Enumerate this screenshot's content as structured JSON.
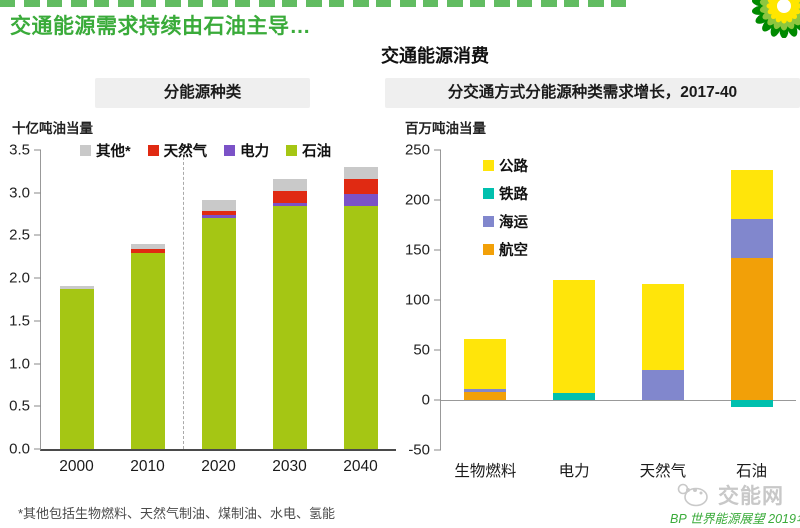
{
  "page": {
    "title": "交通能源需求持续由石油主导…",
    "subtitle": "交通能源消费",
    "footnote": "*其他包括生物燃料、天然气制油、煤制油、水电、氢能",
    "source": "BP 世界能源展望 2019年中文版",
    "watermark_label": "交能网",
    "logo": "bp-helios-logo"
  },
  "colors": {
    "title_green": "#3aab3a",
    "header_bg": "#efefef",
    "watermark_gray": "#c8c8c8",
    "axis_gray": "#999999"
  },
  "chart_data": [
    {
      "type": "bar",
      "title": "分能源种类",
      "unit_label": "十亿吨油当量",
      "categories": [
        "2000",
        "2010",
        "2020",
        "2030",
        "2040"
      ],
      "series": [
        {
          "name": "石油",
          "color": "#a5c614",
          "values": [
            1.87,
            2.29,
            2.71,
            2.84,
            2.84
          ]
        },
        {
          "name": "电力",
          "color": "#7b52c7",
          "values": [
            0,
            0,
            0.03,
            0.04,
            0.15
          ]
        },
        {
          "name": "天然气",
          "color": "#e02a12",
          "values": [
            0,
            0.05,
            0.05,
            0.14,
            0.17
          ]
        },
        {
          "name": "其他*",
          "color": "#c9c9c9",
          "values": [
            0.04,
            0.06,
            0.12,
            0.14,
            0.14
          ]
        }
      ],
      "legend_order": [
        "其他*",
        "天然气",
        "电力",
        "石油"
      ],
      "legend_position": "top-horizontal",
      "ylim": [
        0,
        3.5
      ],
      "yticks": [
        {
          "value": 0,
          "label": "0.0"
        },
        {
          "value": 0.5,
          "label": "0.5"
        },
        {
          "value": 1,
          "label": "1.0"
        },
        {
          "value": 1.5,
          "label": "1.5"
        },
        {
          "value": 2,
          "label": "2.0"
        },
        {
          "value": 2.5,
          "label": "2.5"
        },
        {
          "value": 3,
          "label": "3.0"
        },
        {
          "value": 3.5,
          "label": "3.5"
        }
      ],
      "divider_after_index": 1,
      "grid": false
    },
    {
      "type": "bar",
      "title": "分交通方式分能源种类需求增长，2017-40",
      "unit_label": "百万吨油当量",
      "categories": [
        "生物燃料",
        "电力",
        "天然气",
        "石油"
      ],
      "series": [
        {
          "name": "航空",
          "color": "#f2a008",
          "values": [
            8,
            0,
            0,
            142
          ]
        },
        {
          "name": "铁路",
          "color": "#00c0ae",
          "values": [
            0,
            7,
            0,
            -7
          ]
        },
        {
          "name": "海运",
          "color": "#8187cd",
          "values": [
            3,
            0,
            30,
            39
          ]
        },
        {
          "name": "公路",
          "color": "#ffe50a",
          "values": [
            50,
            113,
            86,
            49
          ]
        }
      ],
      "legend_order": [
        "公路",
        "铁路",
        "海运",
        "航空"
      ],
      "legend_position": "top-left-vertical",
      "ylim": [
        -50,
        250
      ],
      "yticks": [
        {
          "value": -50,
          "label": "-50"
        },
        {
          "value": 0,
          "label": "0"
        },
        {
          "value": 50,
          "label": "50"
        },
        {
          "value": 100,
          "label": "100"
        },
        {
          "value": 150,
          "label": "150"
        },
        {
          "value": 200,
          "label": "200"
        },
        {
          "value": 250,
          "label": "250"
        }
      ],
      "grid": false
    }
  ]
}
